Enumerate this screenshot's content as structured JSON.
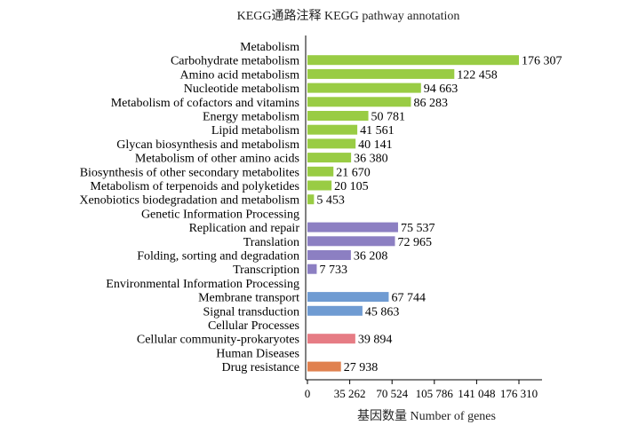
{
  "chart_data": {
    "type": "bar",
    "orientation": "horizontal",
    "title": "KEGG通路注释  KEGG pathway annotation",
    "xlabel": "基因数量  Number of genes",
    "ylabel": "",
    "xlim": [
      0,
      176310
    ],
    "x_ticks": [
      0,
      35262,
      70524,
      105786,
      141048,
      176310
    ],
    "x_tick_labels": [
      "0",
      "35 262",
      "70 524",
      "105 786",
      "141 048",
      "176 310"
    ],
    "groups": [
      {
        "name": "Metabolism",
        "color": "#99cc44",
        "items": [
          {
            "label": "Carbohydrate metabolism",
            "value": 176307,
            "display": "176 307"
          },
          {
            "label": "Amino acid metabolism",
            "value": 122458,
            "display": "122 458"
          },
          {
            "label": "Nucleotide metabolism",
            "value": 94663,
            "display": "94 663"
          },
          {
            "label": "Metabolism of cofactors and vitamins",
            "value": 86283,
            "display": "86 283"
          },
          {
            "label": "Energy metabolism",
            "value": 50781,
            "display": "50 781"
          },
          {
            "label": "Lipid metabolism",
            "value": 41561,
            "display": "41 561"
          },
          {
            "label": "Glycan biosynthesis and metabolism",
            "value": 40141,
            "display": "40 141"
          },
          {
            "label": "Metabolism of other amino acids",
            "value": 36380,
            "display": "36 380"
          },
          {
            "label": "Biosynthesis of other secondary metabolites",
            "value": 21670,
            "display": "21 670"
          },
          {
            "label": "Metabolism of terpenoids and polyketides",
            "value": 20105,
            "display": "20 105"
          },
          {
            "label": "Xenobiotics biodegradation and metabolism",
            "value": 5453,
            "display": "5 453"
          }
        ]
      },
      {
        "name": "Genetic Information Processing",
        "color": "#8c7fc2",
        "items": [
          {
            "label": "Replication and repair",
            "value": 75537,
            "display": "75 537"
          },
          {
            "label": "Translation",
            "value": 72965,
            "display": "72 965"
          },
          {
            "label": "Folding, sorting and degradation",
            "value": 36208,
            "display": "36 208"
          },
          {
            "label": "Transcription",
            "value": 7733,
            "display": "7 733"
          }
        ]
      },
      {
        "name": "Environmental Information Processing",
        "color": "#6f9bd2",
        "items": [
          {
            "label": "Membrane transport",
            "value": 67744,
            "display": "67 744"
          },
          {
            "label": "Signal transduction",
            "value": 45863,
            "display": "45 863"
          }
        ]
      },
      {
        "name": "Cellular Processes",
        "color": "#e67c84",
        "items": [
          {
            "label": "Cellular community-prokaryotes",
            "value": 39894,
            "display": "39 894"
          }
        ]
      },
      {
        "name": "Human Diseases",
        "color": "#e0814f",
        "items": [
          {
            "label": "Drug resistance",
            "value": 27938,
            "display": "27 938"
          }
        ]
      }
    ]
  }
}
